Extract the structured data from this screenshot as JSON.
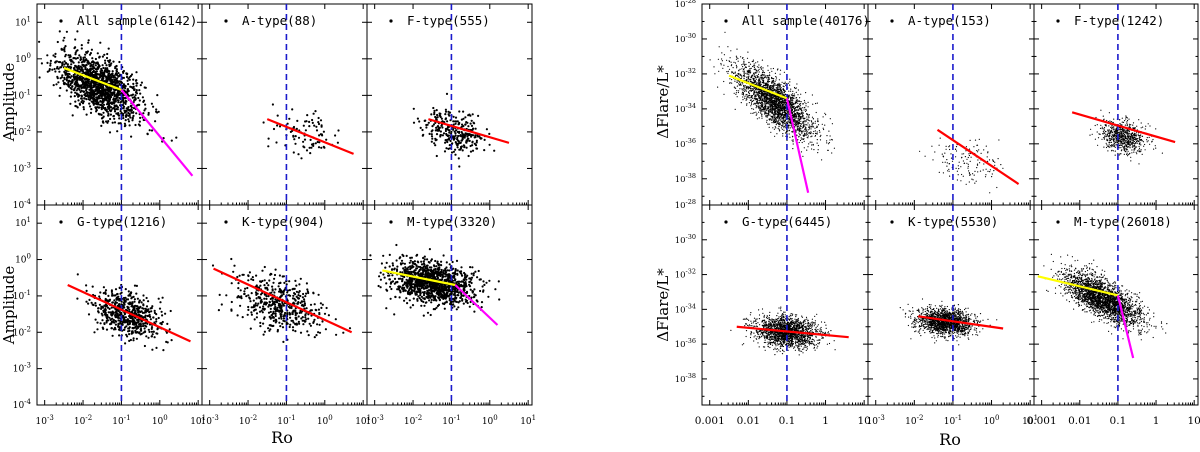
{
  "figure_left": {
    "ylabel": "Amplitude",
    "xlabel": "Ro",
    "xtick_labels": [
      "10^-3",
      "10^-2",
      "10^-1",
      "10^0",
      "10^1"
    ],
    "ytick_labels": [
      "10^1",
      "10^0",
      "10^-1",
      "10^-2",
      "10^-3",
      "10^-4"
    ]
  },
  "figure_right": {
    "ylabel": "ΔFlare/L*",
    "xlabel": "Ro",
    "xtick_labels_wide": [
      "0.001",
      "0.01",
      "0.1",
      "1",
      "10"
    ],
    "xtick_labels_mid": [
      "10^-3",
      "10^-2",
      "10^-1",
      "10^0",
      "10^1"
    ],
    "ytick_labels": [
      "10^-28",
      "10^-30",
      "10^-32",
      "10^-34",
      "10^-36",
      "10^-38"
    ]
  },
  "colors": {
    "vline": "#1a1acc",
    "fit_low_ro": "#ffff00",
    "fit_high_ro": "#ff00ff",
    "fit_single": "#ff0000",
    "points": "#000000"
  },
  "chart_data": [
    {
      "type": "scatter",
      "figure": "left",
      "title": "All sample(6142)",
      "xlabel": "Ro",
      "ylabel": "Amplitude",
      "xscale": "log",
      "yscale": "log",
      "xlim_log": [
        -3.2,
        1.1
      ],
      "ylim_log": [
        -4,
        1.5
      ],
      "saturation_ro": 0.1,
      "cloud": {
        "n": 1400,
        "cx_log": -1.55,
        "cy_log": -0.75,
        "sx": 0.55,
        "sy": 0.45,
        "rho": -0.55
      },
      "fits": [
        {
          "segment": "low_ro",
          "x_log": [
            -2.5,
            -1.0
          ],
          "y_log": [
            -0.25,
            -0.85
          ]
        },
        {
          "segment": "high_ro",
          "x_log": [
            -1.0,
            0.85
          ],
          "y_log": [
            -0.85,
            -3.2
          ]
        }
      ]
    },
    {
      "type": "scatter",
      "figure": "left",
      "title": "A-type(88)",
      "xscale": "log",
      "yscale": "log",
      "xlim_log": [
        -3.2,
        1.1
      ],
      "ylim_log": [
        -4,
        1.5
      ],
      "saturation_ro": 0.1,
      "cloud": {
        "n": 88,
        "cx_log": -0.5,
        "cy_log": -2.05,
        "sx": 0.45,
        "sy": 0.3,
        "rho": -0.3
      },
      "fits": [
        {
          "segment": "single",
          "x_log": [
            -1.5,
            0.75
          ],
          "y_log": [
            -1.65,
            -2.6
          ]
        }
      ]
    },
    {
      "type": "scatter",
      "figure": "left",
      "title": "F-type(555)",
      "xscale": "log",
      "yscale": "log",
      "xlim_log": [
        -3.2,
        1.1
      ],
      "ylim_log": [
        -4,
        1.5
      ],
      "saturation_ro": 0.1,
      "cloud": {
        "n": 300,
        "cx_log": -0.9,
        "cy_log": -2.0,
        "sx": 0.4,
        "sy": 0.3,
        "rho": -0.3
      },
      "fits": [
        {
          "segment": "single",
          "x_log": [
            -1.6,
            0.5
          ],
          "y_log": [
            -1.65,
            -2.3
          ]
        }
      ]
    },
    {
      "type": "scatter",
      "figure": "left",
      "title": "G-type(1216)",
      "xscale": "log",
      "yscale": "log",
      "xlim_log": [
        -3.2,
        1.1
      ],
      "ylim_log": [
        -4,
        1.5
      ],
      "saturation_ro": 0.1,
      "cloud": {
        "n": 600,
        "cx_log": -0.85,
        "cy_log": -1.5,
        "sx": 0.45,
        "sy": 0.35,
        "rho": -0.4
      },
      "fits": [
        {
          "segment": "single",
          "x_log": [
            -2.4,
            0.8
          ],
          "y_log": [
            -0.7,
            -2.25
          ]
        }
      ]
    },
    {
      "type": "scatter",
      "figure": "left",
      "title": "K-type(904)",
      "xscale": "log",
      "yscale": "log",
      "xlim_log": [
        -3.2,
        1.1
      ],
      "ylim_log": [
        -4,
        1.5
      ],
      "saturation_ro": 0.1,
      "cloud": {
        "n": 500,
        "cx_log": -1.2,
        "cy_log": -1.2,
        "sx": 0.55,
        "sy": 0.4,
        "rho": -0.4
      },
      "fits": [
        {
          "segment": "single",
          "x_log": [
            -2.9,
            0.7
          ],
          "y_log": [
            -0.25,
            -2.0
          ]
        }
      ]
    },
    {
      "type": "scatter",
      "figure": "left",
      "title": "M-type(3320)",
      "xscale": "log",
      "yscale": "log",
      "xlim_log": [
        -3.2,
        1.1
      ],
      "ylim_log": [
        -4,
        1.5
      ],
      "saturation_ro": 0.1,
      "cloud": {
        "n": 1200,
        "cx_log": -1.5,
        "cy_log": -0.65,
        "sx": 0.55,
        "sy": 0.3,
        "rho": -0.3
      },
      "fits": [
        {
          "segment": "low_ro",
          "x_log": [
            -2.8,
            -0.9
          ],
          "y_log": [
            -0.3,
            -0.7
          ]
        },
        {
          "segment": "high_ro",
          "x_log": [
            -0.9,
            0.2
          ],
          "y_log": [
            -0.7,
            -1.8
          ]
        }
      ]
    },
    {
      "type": "scatter",
      "figure": "right",
      "title": "All sample(40176)",
      "xlabel": "Ro",
      "ylabel": "ΔFlare/L*",
      "xscale": "log",
      "yscale": "log",
      "xlim_log": [
        -3.2,
        1.1
      ],
      "ylim_log": [
        -39.5,
        -28
      ],
      "saturation_ro": 0.1,
      "cloud": {
        "n": 2600,
        "cx_log": -1.3,
        "cy_log": -33.6,
        "sx": 0.5,
        "sy": 1.0,
        "rho": -0.75
      },
      "fits": [
        {
          "segment": "low_ro",
          "x_log": [
            -2.5,
            -1.0
          ],
          "y_log": [
            -32.1,
            -33.4
          ]
        },
        {
          "segment": "high_ro",
          "x_log": [
            -1.0,
            -0.45
          ],
          "y_log": [
            -33.4,
            -38.8
          ]
        }
      ]
    },
    {
      "type": "scatter",
      "figure": "right",
      "title": "A-type(153)",
      "xscale": "log",
      "yscale": "log",
      "xlim_log": [
        -3.2,
        1.1
      ],
      "ylim_log": [
        -39.5,
        -28
      ],
      "saturation_ro": 0.1,
      "cloud": {
        "n": 140,
        "cx_log": -0.6,
        "cy_log": -37.1,
        "sx": 0.5,
        "sy": 0.7,
        "rho": -0.3
      },
      "fits": [
        {
          "segment": "single",
          "x_log": [
            -1.4,
            0.7
          ],
          "y_log": [
            -35.2,
            -38.3
          ]
        }
      ]
    },
    {
      "type": "scatter",
      "figure": "right",
      "title": "F-type(1242)",
      "xscale": "log",
      "yscale": "log",
      "xlim_log": [
        -3.2,
        1.1
      ],
      "ylim_log": [
        -39.5,
        -28
      ],
      "saturation_ro": 0.1,
      "cloud": {
        "n": 700,
        "cx_log": -0.85,
        "cy_log": -35.6,
        "sx": 0.3,
        "sy": 0.45,
        "rho": -0.2
      },
      "fits": [
        {
          "segment": "single",
          "x_log": [
            -2.2,
            0.5
          ],
          "y_log": [
            -34.2,
            -35.9
          ]
        }
      ]
    },
    {
      "type": "scatter",
      "figure": "right",
      "title": "G-type(6445)",
      "xscale": "log",
      "yscale": "log",
      "xlim_log": [
        -3.2,
        1.1
      ],
      "ylim_log": [
        -39.5,
        -28
      ],
      "saturation_ro": 0.1,
      "cloud": {
        "n": 1800,
        "cx_log": -1.0,
        "cy_log": -35.3,
        "sx": 0.4,
        "sy": 0.45,
        "rho": -0.2
      },
      "fits": [
        {
          "segment": "single",
          "x_log": [
            -2.3,
            0.6
          ],
          "y_log": [
            -35.0,
            -35.6
          ]
        }
      ]
    },
    {
      "type": "scatter",
      "figure": "right",
      "title": "K-type(5530)",
      "xscale": "log",
      "yscale": "log",
      "xlim_log": [
        -3.2,
        1.1
      ],
      "ylim_log": [
        -39.5,
        -28
      ],
      "saturation_ro": 0.1,
      "cloud": {
        "n": 1600,
        "cx_log": -1.2,
        "cy_log": -34.7,
        "sx": 0.35,
        "sy": 0.4,
        "rho": -0.2
      },
      "fits": [
        {
          "segment": "single",
          "x_log": [
            -1.9,
            0.3
          ],
          "y_log": [
            -34.4,
            -35.1
          ]
        }
      ]
    },
    {
      "type": "scatter",
      "figure": "right",
      "title": "M-type(26018)",
      "xscale": "log",
      "yscale": "log",
      "xlim_log": [
        -3.2,
        1.1
      ],
      "ylim_log": [
        -39.5,
        -28
      ],
      "saturation_ro": 0.1,
      "cloud": {
        "n": 2600,
        "cx_log": -1.4,
        "cy_log": -33.4,
        "sx": 0.5,
        "sy": 0.75,
        "rho": -0.7
      },
      "fits": [
        {
          "segment": "low_ro",
          "x_log": [
            -3.1,
            -1.0
          ],
          "y_log": [
            -32.1,
            -33.2
          ]
        },
        {
          "segment": "high_ro",
          "x_log": [
            -1.0,
            -0.6
          ],
          "y_log": [
            -33.2,
            -36.8
          ]
        }
      ]
    }
  ]
}
